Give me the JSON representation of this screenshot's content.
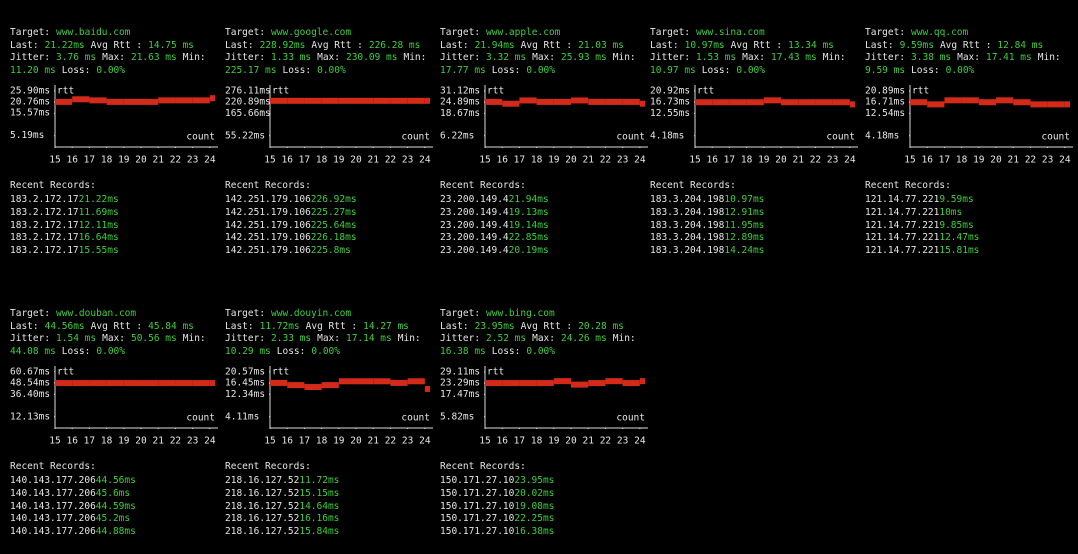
{
  "labels": {
    "target": "Target:",
    "last": "Last:",
    "avg": "Avg Rtt :",
    "jitter": "Jitter:",
    "max": "Max:",
    "min": "Min:",
    "loss": "Loss:",
    "recent": "Recent Records:",
    "legend": "rtt",
    "xlabel": "count"
  },
  "panels": [
    {
      "target": "www.baidu.com",
      "last": "21.22ms",
      "avg": "14.75 ms",
      "jitter": "3.76 ms",
      "max": "21.63 ms",
      "min": "11.20 ms",
      "loss": "0.00%",
      "chart": {
        "type": "step",
        "ylim": [
          0,
          27.2
        ],
        "yticks": [
          {
            "value": 25.9,
            "label": "25.90ms"
          },
          {
            "value": 20.76,
            "label": "20.76ms"
          },
          {
            "value": 15.57,
            "label": "15.57ms"
          },
          {
            "value": 5.19,
            "label": "5.19ms"
          }
        ],
        "xlim": [
          15,
          24.3
        ],
        "xticks": [
          15,
          16,
          17,
          18,
          19,
          20,
          21,
          22,
          23,
          24
        ],
        "x": [
          15,
          16,
          17,
          18,
          19,
          20,
          21,
          22,
          23,
          24
        ],
        "values": [
          20.8,
          22,
          21.5,
          20.8,
          20.8,
          20.8,
          21.5,
          21.5,
          21.5,
          22.5
        ],
        "color": "#d42a1a"
      },
      "records": [
        {
          "ip": "183.2.172.17",
          "rtt": "21.22ms"
        },
        {
          "ip": "183.2.172.17",
          "rtt": "11.69ms"
        },
        {
          "ip": "183.2.172.17",
          "rtt": "12.11ms"
        },
        {
          "ip": "183.2.172.17",
          "rtt": "16.64ms"
        },
        {
          "ip": "183.2.172.17",
          "rtt": "15.55ms"
        }
      ]
    },
    {
      "target": "www.google.com",
      "last": "228.92ms",
      "avg": "226.28 ms",
      "jitter": "1.33 ms",
      "max": "230.09 ms",
      "min": "225.17 ms",
      "loss": "0.00%",
      "chart": {
        "type": "step",
        "ylim": [
          0,
          290
        ],
        "yticks": [
          {
            "value": 276.11,
            "label": "276.11ms"
          },
          {
            "value": 220.89,
            "label": "220.89ms"
          },
          {
            "value": 165.66,
            "label": "165.66ms"
          },
          {
            "value": 55.22,
            "label": "55.22ms"
          }
        ],
        "xlim": [
          15,
          24.3
        ],
        "xticks": [
          15,
          16,
          17,
          18,
          19,
          20,
          21,
          22,
          23,
          24
        ],
        "x": [
          15,
          16,
          17,
          18,
          19,
          20,
          21,
          22,
          23,
          24
        ],
        "values": [
          227,
          227,
          227,
          227,
          227,
          227,
          227,
          227,
          227,
          227
        ],
        "color": "#d42a1a"
      },
      "records": [
        {
          "ip": "142.251.179.106",
          "rtt": "226.92ms"
        },
        {
          "ip": "142.251.179.106",
          "rtt": "225.27ms"
        },
        {
          "ip": "142.251.179.106",
          "rtt": "225.64ms"
        },
        {
          "ip": "142.251.179.106",
          "rtt": "226.18ms"
        },
        {
          "ip": "142.251.179.106",
          "rtt": "225.8ms"
        }
      ]
    },
    {
      "target": "www.apple.com",
      "last": "21.94ms",
      "avg": "21.03 ms",
      "jitter": "3.32 ms",
      "max": "25.93 ms",
      "min": "17.77 ms",
      "loss": "0.00%",
      "chart": {
        "type": "step",
        "ylim": [
          0,
          32.7
        ],
        "yticks": [
          {
            "value": 31.12,
            "label": "31.12ms"
          },
          {
            "value": 24.89,
            "label": "24.89ms"
          },
          {
            "value": 18.67,
            "label": "18.67ms"
          },
          {
            "value": 6.22,
            "label": "6.22ms"
          }
        ],
        "xlim": [
          15,
          24.3
        ],
        "xticks": [
          15,
          16,
          17,
          18,
          19,
          20,
          21,
          22,
          23,
          24
        ],
        "x": [
          15,
          16,
          17,
          18,
          19,
          20,
          21,
          22,
          23,
          24
        ],
        "values": [
          25,
          24,
          25.8,
          25,
          25,
          25.8,
          25,
          25,
          25,
          24
        ],
        "color": "#d42a1a"
      },
      "records": [
        {
          "ip": "23.200.149.4",
          "rtt": "21.94ms"
        },
        {
          "ip": "23.200.149.4",
          "rtt": "19.13ms"
        },
        {
          "ip": "23.200.149.4",
          "rtt": "19.14ms"
        },
        {
          "ip": "23.200.149.4",
          "rtt": "22.85ms"
        },
        {
          "ip": "23.200.149.4",
          "rtt": "20.19ms"
        }
      ]
    },
    {
      "target": "www.sina.com",
      "last": "10.97ms",
      "avg": "13.34 ms",
      "jitter": "1.53 ms",
      "max": "17.43 ms",
      "min": "10.97 ms",
      "loss": "0.00%",
      "chart": {
        "type": "step",
        "ylim": [
          0,
          22
        ],
        "yticks": [
          {
            "value": 20.92,
            "label": "20.92ms"
          },
          {
            "value": 16.73,
            "label": "16.73ms"
          },
          {
            "value": 12.55,
            "label": "12.55ms"
          },
          {
            "value": 4.18,
            "label": "4.18ms"
          }
        ],
        "xlim": [
          15,
          24.3
        ],
        "xticks": [
          15,
          16,
          17,
          18,
          19,
          20,
          21,
          22,
          23,
          24
        ],
        "x": [
          15,
          16,
          17,
          18,
          19,
          20,
          21,
          22,
          23,
          24
        ],
        "values": [
          16.7,
          16.7,
          16.7,
          16.7,
          17.4,
          16.7,
          16.7,
          16.7,
          16.7,
          15.9
        ],
        "color": "#d42a1a"
      },
      "records": [
        {
          "ip": "183.3.204.198",
          "rtt": "10.97ms"
        },
        {
          "ip": "183.3.204.198",
          "rtt": "12.91ms"
        },
        {
          "ip": "183.3.204.198",
          "rtt": "11.95ms"
        },
        {
          "ip": "183.3.204.198",
          "rtt": "12.89ms"
        },
        {
          "ip": "183.3.204.198",
          "rtt": "14.24ms"
        }
      ]
    },
    {
      "target": "www.qq.com",
      "last": "9.59ms",
      "avg": "12.84 ms",
      "jitter": "3.38 ms",
      "max": "17.41 ms",
      "min": "9.59 ms",
      "loss": "0.00%",
      "chart": {
        "type": "step",
        "ylim": [
          0,
          22
        ],
        "yticks": [
          {
            "value": 20.89,
            "label": "20.89ms"
          },
          {
            "value": 16.71,
            "label": "16.71ms"
          },
          {
            "value": 12.54,
            "label": "12.54ms"
          },
          {
            "value": 4.18,
            "label": "4.18ms"
          }
        ],
        "xlim": [
          15,
          24.3
        ],
        "xticks": [
          15,
          16,
          17,
          18,
          19,
          20,
          21,
          22,
          23,
          24
        ],
        "x": [
          15,
          16,
          17,
          18,
          19,
          20,
          21,
          22,
          23,
          24
        ],
        "values": [
          16.7,
          15.9,
          17.4,
          17.4,
          16.7,
          17.4,
          16.7,
          15.9,
          15.9,
          15.9
        ],
        "color": "#d42a1a"
      },
      "records": [
        {
          "ip": "121.14.77.221",
          "rtt": "9.59ms"
        },
        {
          "ip": "121.14.77.221",
          "rtt": "10ms"
        },
        {
          "ip": "121.14.77.221",
          "rtt": "9.85ms"
        },
        {
          "ip": "121.14.77.221",
          "rtt": "12.47ms"
        },
        {
          "ip": "121.14.77.221",
          "rtt": "15.81ms"
        }
      ]
    },
    {
      "target": "www.douban.com",
      "last": "44.56ms",
      "avg": "45.84 ms",
      "jitter": "1.54 ms",
      "max": "50.56 ms",
      "min": "44.08 ms",
      "loss": "0.00%",
      "chart": {
        "type": "step",
        "ylim": [
          0,
          63.7
        ],
        "yticks": [
          {
            "value": 60.67,
            "label": "60.67ms"
          },
          {
            "value": 48.54,
            "label": "48.54ms"
          },
          {
            "value": 36.4,
            "label": "36.40ms"
          },
          {
            "value": 12.13,
            "label": "12.13ms"
          }
        ],
        "xlim": [
          15,
          24.3
        ],
        "xticks": [
          15,
          16,
          17,
          18,
          19,
          20,
          21,
          22,
          23,
          24
        ],
        "x": [
          15,
          16,
          17,
          18,
          19,
          20,
          21,
          22,
          23,
          24
        ],
        "values": [
          48.5,
          48.5,
          48.5,
          48.5,
          48.5,
          48.5,
          48.5,
          48.5,
          48.5,
          48.5
        ],
        "color": "#d42a1a"
      },
      "records": [
        {
          "ip": "140.143.177.206",
          "rtt": "44.56ms"
        },
        {
          "ip": "140.143.177.206",
          "rtt": "45.6ms"
        },
        {
          "ip": "140.143.177.206",
          "rtt": "44.59ms"
        },
        {
          "ip": "140.143.177.206",
          "rtt": "45.2ms"
        },
        {
          "ip": "140.143.177.206",
          "rtt": "44.88ms"
        }
      ]
    },
    {
      "target": "www.douyin.com",
      "last": "11.72ms",
      "avg": "14.27 ms",
      "jitter": "2.33 ms",
      "max": "17.14 ms",
      "min": "10.29 ms",
      "loss": "0.00%",
      "chart": {
        "type": "step",
        "ylim": [
          0,
          21.6
        ],
        "yticks": [
          {
            "value": 20.57,
            "label": "20.57ms"
          },
          {
            "value": 16.45,
            "label": "16.45ms"
          },
          {
            "value": 12.34,
            "label": "12.34ms"
          },
          {
            "value": 4.11,
            "label": "4.11ms"
          }
        ],
        "xlim": [
          15,
          24.3
        ],
        "xticks": [
          15,
          16,
          17,
          18,
          19,
          20,
          21,
          22,
          23,
          24
        ],
        "x": [
          15,
          16,
          17,
          18,
          19,
          20,
          21,
          22,
          23,
          24
        ],
        "values": [
          16.5,
          15.7,
          15,
          15.7,
          17.1,
          17.1,
          17.1,
          16.5,
          17.1,
          14.3
        ],
        "color": "#d42a1a"
      },
      "records": [
        {
          "ip": "218.16.127.52",
          "rtt": "11.72ms"
        },
        {
          "ip": "218.16.127.52",
          "rtt": "15.15ms"
        },
        {
          "ip": "218.16.127.52",
          "rtt": "14.64ms"
        },
        {
          "ip": "218.16.127.52",
          "rtt": "16.16ms"
        },
        {
          "ip": "218.16.127.52",
          "rtt": "15.84ms"
        }
      ]
    },
    {
      "target": "www.bing.com",
      "last": "23.95ms",
      "avg": "20.28 ms",
      "jitter": "2.52 ms",
      "max": "24.26 ms",
      "min": "16.38 ms",
      "loss": "0.00%",
      "chart": {
        "type": "step",
        "ylim": [
          0,
          30.6
        ],
        "yticks": [
          {
            "value": 29.11,
            "label": "29.11ms"
          },
          {
            "value": 23.29,
            "label": "23.29ms"
          },
          {
            "value": 17.47,
            "label": "17.47ms"
          },
          {
            "value": 5.82,
            "label": "5.82ms"
          }
        ],
        "xlim": [
          15,
          24.3
        ],
        "xticks": [
          15,
          16,
          17,
          18,
          19,
          20,
          21,
          22,
          23,
          24
        ],
        "x": [
          15,
          16,
          17,
          18,
          19,
          20,
          21,
          22,
          23,
          24
        ],
        "values": [
          23.3,
          23.3,
          23.3,
          23.3,
          24.3,
          22.5,
          23.3,
          24.3,
          23.3,
          24.3
        ],
        "color": "#d42a1a"
      },
      "records": [
        {
          "ip": "150.171.27.10",
          "rtt": "23.95ms"
        },
        {
          "ip": "150.171.27.10",
          "rtt": "20.02ms"
        },
        {
          "ip": "150.171.27.10",
          "rtt": "19.08ms"
        },
        {
          "ip": "150.171.27.10",
          "rtt": "22.25ms"
        },
        {
          "ip": "150.171.27.10",
          "rtt": "16.38ms"
        }
      ]
    }
  ]
}
